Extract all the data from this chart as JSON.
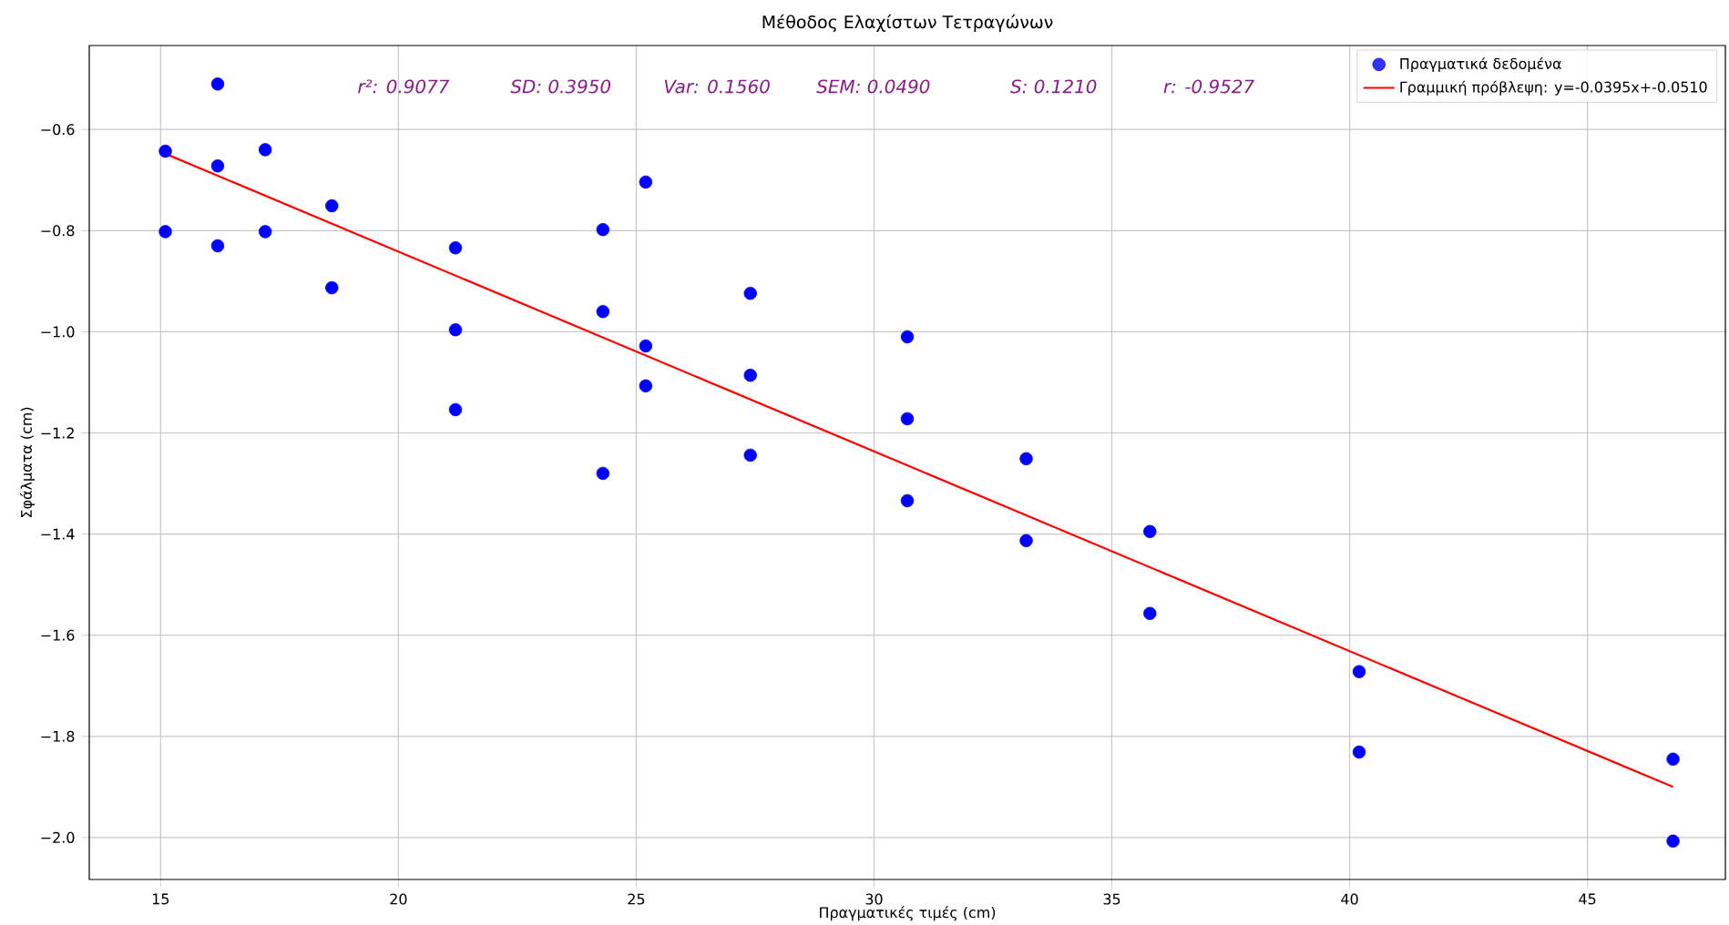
{
  "chart_data": {
    "type": "scatter",
    "title": "Μέθοδος Ελαχίστων Τετραγώνων",
    "xlabel": "Πραγματικές τιμές (cm)",
    "ylabel": "Σφάλματα (cm)",
    "annotations": [
      "r²: 0.9077",
      "SD: 0.3950",
      "Var: 0.1560",
      "SEM: 0.0490",
      "S: 0.1210",
      "r: -0.9527"
    ],
    "xlim": [
      13.5,
      47.9
    ],
    "ylim": [
      -2.083,
      -0.434
    ],
    "xticks": [
      15,
      20,
      25,
      30,
      35,
      40,
      45
    ],
    "yticks": [
      {
        "value": -2.0,
        "label": "−2.0"
      },
      {
        "value": -1.8,
        "label": "−1.8"
      },
      {
        "value": -1.6,
        "label": "−1.6"
      },
      {
        "value": -1.4,
        "label": "−1.4"
      },
      {
        "value": -1.2,
        "label": "−1.2"
      },
      {
        "value": -1.0,
        "label": "−1.0"
      },
      {
        "value": -0.8,
        "label": "−0.8"
      },
      {
        "value": -0.6,
        "label": "−0.6"
      }
    ],
    "grid": true,
    "legend": "top right",
    "marker": "circle",
    "series": [
      {
        "name": "Πραγματικά δεδομένα",
        "color": "#0000ff",
        "x": [
          15.1,
          15.1,
          16.2,
          16.2,
          16.2,
          17.2,
          17.2,
          18.6,
          18.6,
          21.2,
          21.2,
          21.2,
          24.3,
          24.3,
          24.3,
          25.2,
          25.2,
          25.2,
          27.4,
          27.4,
          27.4,
          30.7,
          30.7,
          30.7,
          33.2,
          33.2,
          35.8,
          35.8,
          40.2,
          40.2,
          46.8,
          46.8
        ],
        "values": [
          -0.643,
          -0.802,
          -0.51,
          -0.672,
          -0.83,
          -0.64,
          -0.802,
          -0.751,
          -0.913,
          -0.834,
          -0.996,
          -1.154,
          -0.798,
          -0.96,
          -1.28,
          -0.704,
          -1.028,
          -1.107,
          -0.924,
          -1.086,
          -1.244,
          -1.01,
          -1.172,
          -1.334,
          -1.251,
          -1.413,
          -1.395,
          -1.557,
          -1.672,
          -1.831,
          -1.845,
          -2.007
        ]
      },
      {
        "name": "Γραμμική πρόβλεψη: y=-0.0395x+-0.0510",
        "type": "line",
        "marker": "none",
        "color": "#ff0000",
        "x": [
          15.1,
          46.8
        ],
        "values": [
          -0.648,
          -1.9
        ]
      }
    ]
  }
}
